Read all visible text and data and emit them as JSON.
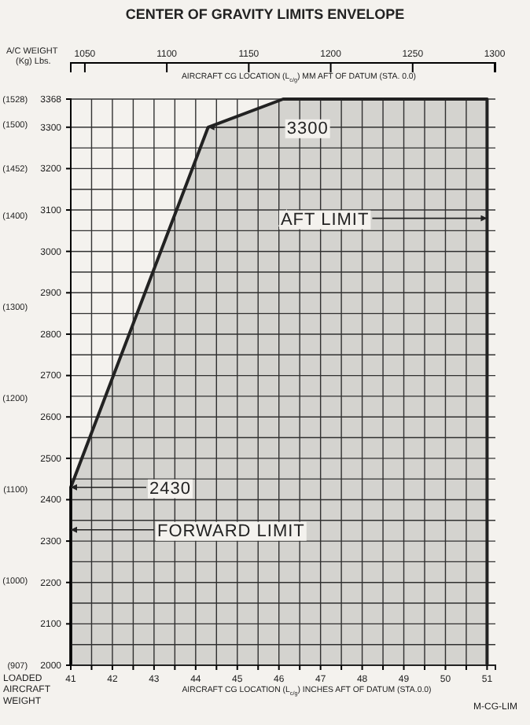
{
  "chart_data": {
    "title": "CENTER OF GRAVITY LIMITS ENVELOPE",
    "xlabel": "AIRCRAFT CG LOCATION (L$_{c/g}$) INCHES AFT OF DATUM (STA.0.0)",
    "x2label": "AIRCRAFT CG LOCATION (L$_{c/g}$) MM AFT OF DATUM (STA. 0.0)",
    "type": "line",
    "x": [
      41,
      41,
      44.3,
      46.1,
      51,
      51
    ],
    "series": [
      {
        "color": "#222222",
        "values": [
          2000,
          2430,
          3300,
          3368,
          3368,
          2000
        ]
      }
    ],
    "xlim": [
      41,
      51.2
    ],
    "xticks": [
      41,
      {
        "value": 41.5,
        "label": null
      },
      42,
      {
        "value": 42.5,
        "label": null
      },
      43,
      {
        "value": 43.5,
        "label": null
      },
      44,
      {
        "value": 44.5,
        "label": null
      },
      45,
      {
        "value": 45.5,
        "label": null
      },
      46,
      {
        "value": 46.5,
        "label": null
      },
      47,
      {
        "value": 47.5,
        "label": null
      },
      48,
      {
        "value": 48.5,
        "label": null
      },
      49,
      {
        "value": 49.5,
        "label": null
      },
      50,
      {
        "value": 50.5,
        "label": null
      },
      51
    ],
    "x2lim": [
      1041.4,
      1300.48
    ],
    "x2ticks": [
      1050,
      1100,
      1150,
      1200,
      1250,
      1300
    ],
    "ylim": [
      2000,
      3368
    ],
    "yticks": [
      2000,
      {
        "value": 2050,
        "label": null
      },
      2100,
      {
        "value": 2150,
        "label": null
      },
      2200,
      {
        "value": 2250,
        "label": null
      },
      2300,
      {
        "value": 2350,
        "label": null
      },
      2400,
      {
        "value": 2450,
        "label": null
      },
      2500,
      {
        "value": 2550,
        "label": null
      },
      2600,
      {
        "value": 2650,
        "label": null
      },
      2700,
      {
        "value": 2750,
        "label": null
      },
      2800,
      {
        "value": 2850,
        "label": null
      },
      2900,
      {
        "value": 2950,
        "label": null
      },
      3000,
      {
        "value": 3050,
        "label": null
      },
      3100,
      {
        "value": 3150,
        "label": null
      },
      3200,
      {
        "value": 3250,
        "label": null
      },
      3300,
      3368
    ],
    "y2lim": [
      907,
      1528
    ],
    "y2ticks": [
      {
        "value": 907,
        "label": "(907)"
      },
      {
        "value": 1000,
        "label": "(1000)"
      },
      {
        "value": 1100,
        "label": "(1100)"
      },
      {
        "value": 1200,
        "label": "(1200)"
      },
      {
        "value": 1300,
        "label": "(1300)"
      },
      {
        "value": 1400,
        "label": "(1400)"
      },
      {
        "value": 1452,
        "label": "(1452)"
      },
      {
        "value": 1500,
        "label": "(1500)"
      },
      {
        "value": 1528,
        "label": "(1528)"
      }
    ],
    "grid": true,
    "annotations": [
      "3300",
      {
        "text": "AFT LIMIT",
        "x": 51,
        "y": 3080
      },
      "2430",
      "FORWARD LIMIT",
      "A/C WEIGHT (Kg) Lbs.",
      "LOADED AIRCRAFT WEIGHT",
      "M-CG-LIM"
    ]
  }
}
